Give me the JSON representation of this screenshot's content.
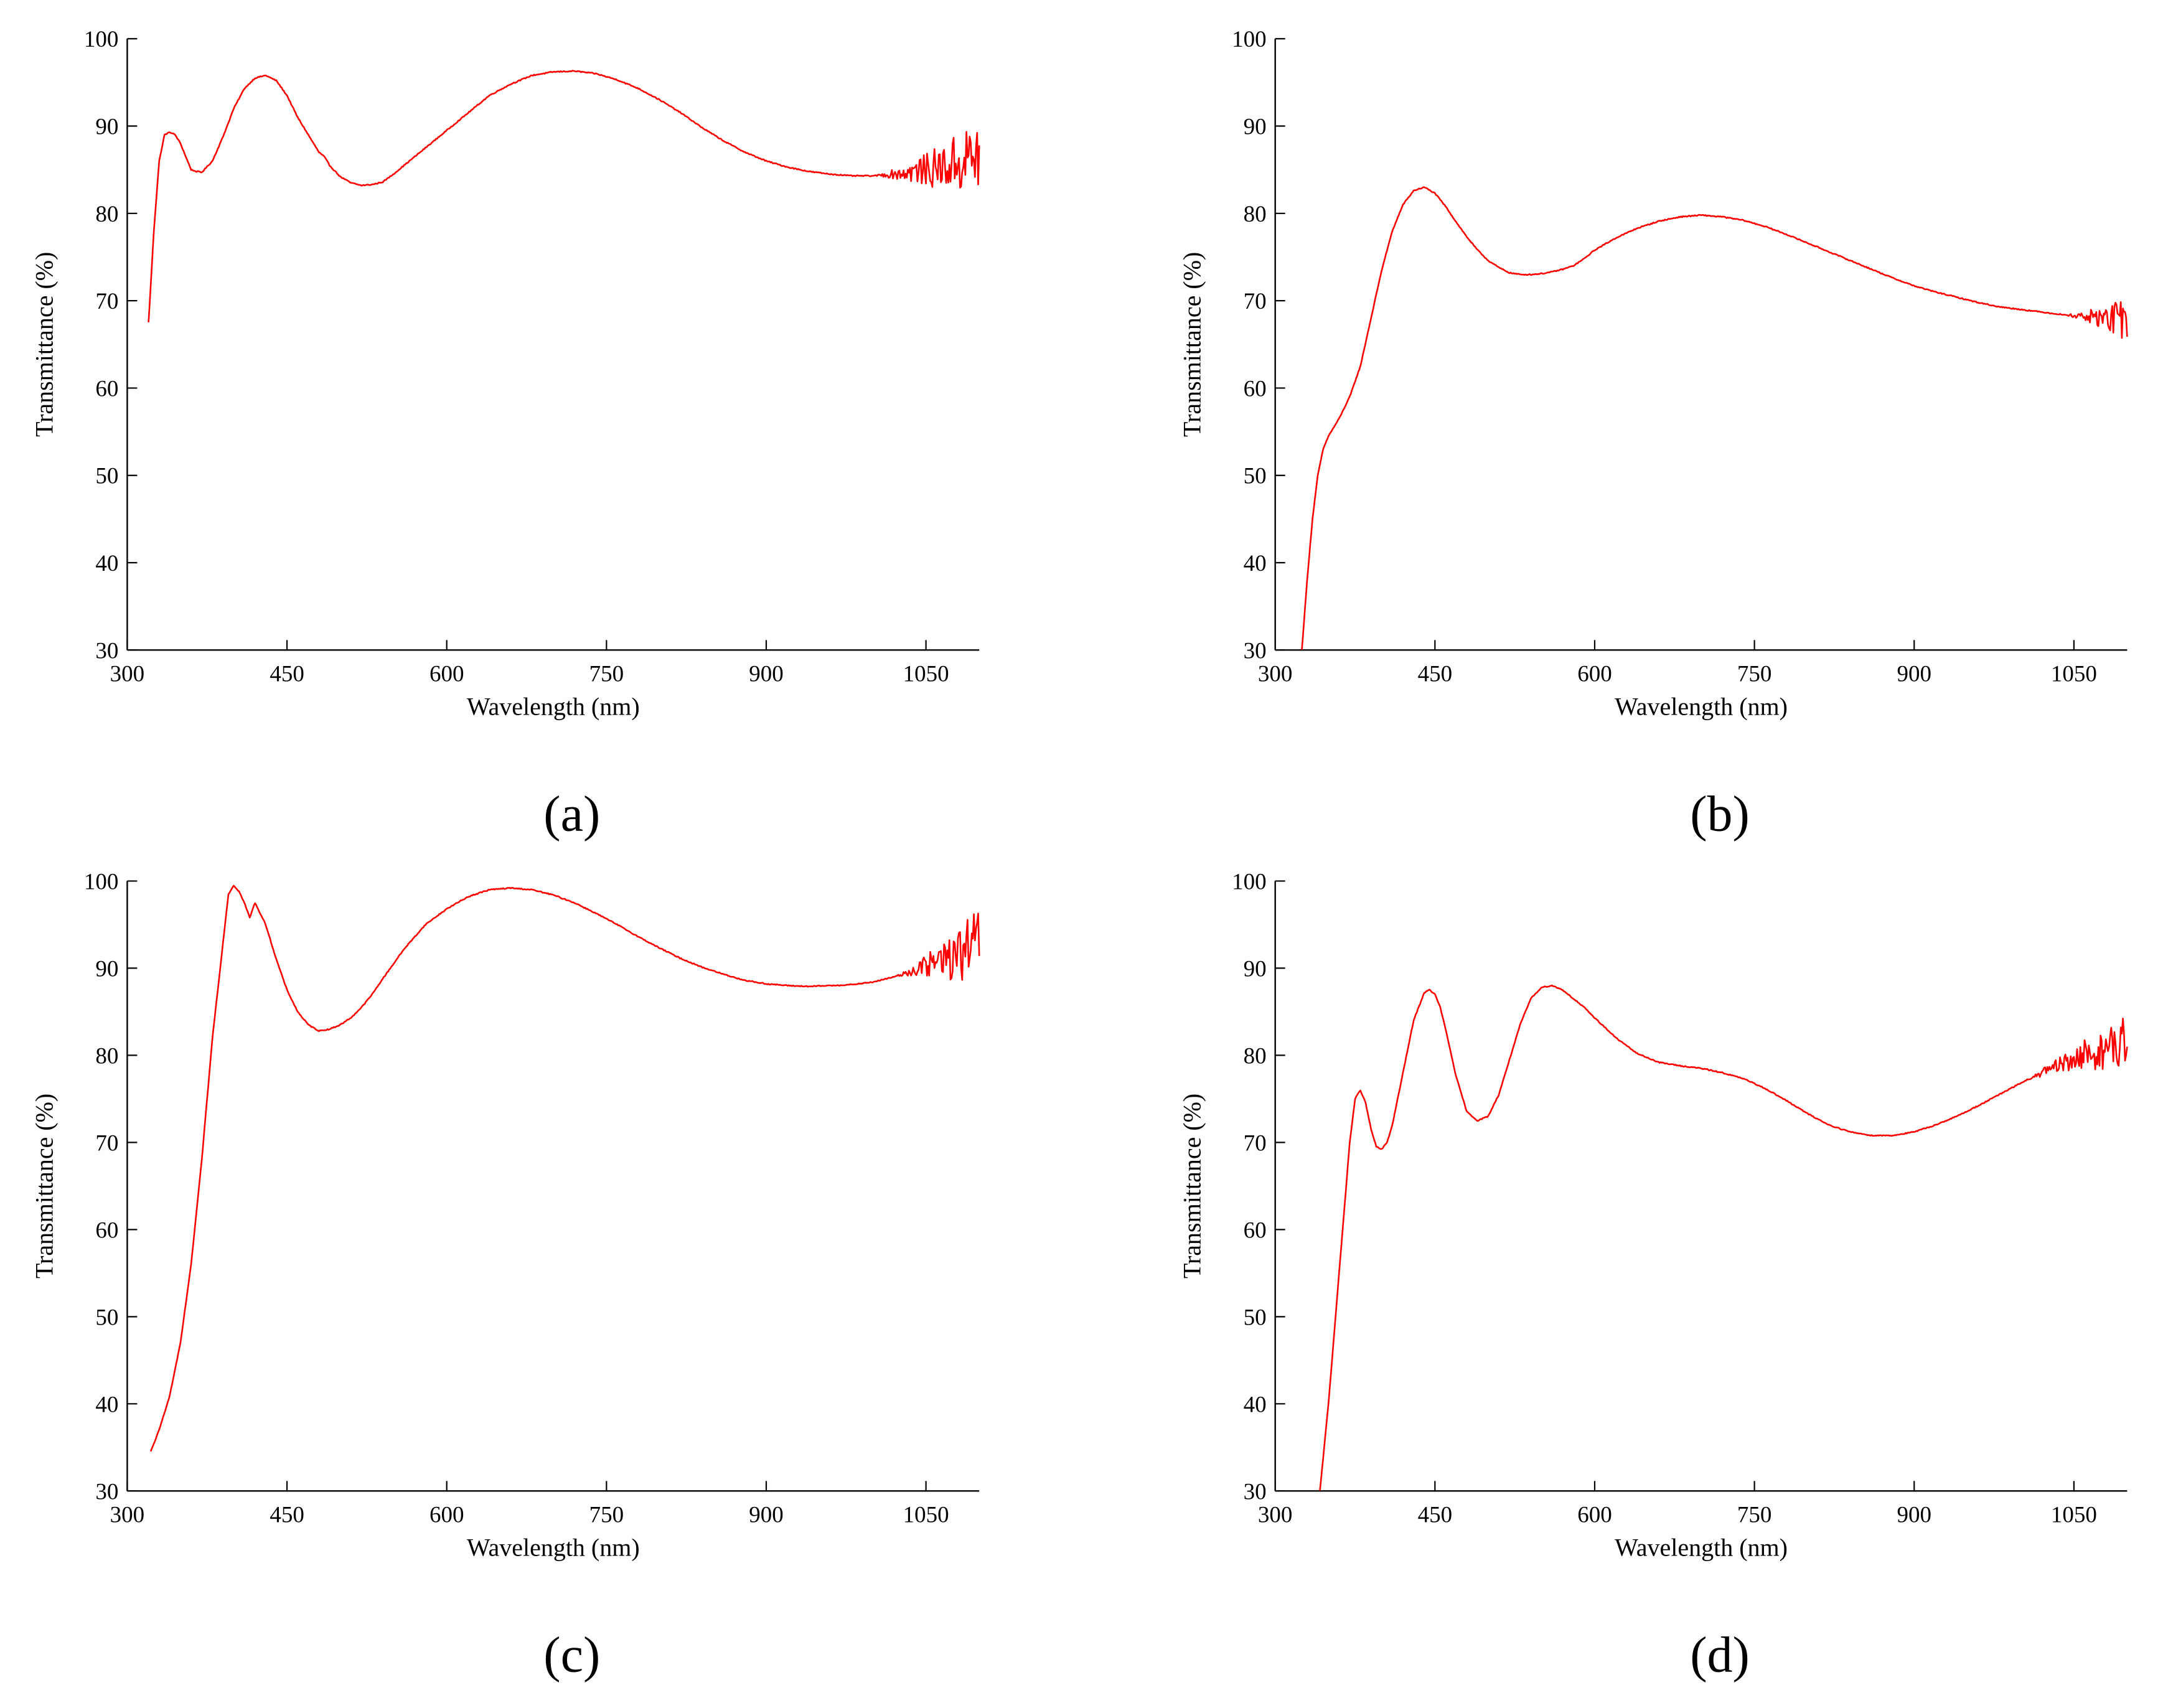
{
  "figure": {
    "line_color": "#ff0000",
    "axis_color": "#000000",
    "background": "#ffffff"
  },
  "chart_data": [
    {
      "type": "line",
      "panel_label": "(a)",
      "xlabel": "Wavelength (nm)",
      "ylabel": "Transmittance (%)",
      "xlim": [
        300,
        1100
      ],
      "ylim": [
        30,
        100
      ],
      "x_ticks": [
        300,
        450,
        600,
        750,
        900,
        1050
      ],
      "y_ticks": [
        30,
        40,
        50,
        60,
        70,
        80,
        90,
        100
      ],
      "noise_start": 1000,
      "noise_amplitude": 4.5,
      "grid": false,
      "series": [
        {
          "x": [
            320,
            325,
            330,
            335,
            340,
            345,
            350,
            355,
            360,
            365,
            370,
            380,
            390,
            400,
            410,
            420,
            430,
            440,
            450,
            460,
            470,
            480,
            485,
            490,
            500,
            510,
            520,
            530,
            540,
            550,
            560,
            580,
            600,
            620,
            640,
            660,
            680,
            700,
            720,
            740,
            760,
            780,
            800,
            820,
            840,
            860,
            880,
            900,
            920,
            940,
            960,
            980,
            1000,
            1020,
            1040,
            1060,
            1080,
            1100
          ],
          "y": [
            67.5,
            78,
            86,
            89,
            89.3,
            89,
            88,
            86.5,
            85,
            84.8,
            84.7,
            86,
            88.8,
            92,
            94.3,
            95.5,
            95.8,
            95.2,
            93.5,
            91,
            89,
            87,
            86.5,
            85.5,
            84.2,
            83.5,
            83.2,
            83.3,
            83.6,
            84.5,
            85.5,
            87.5,
            89.5,
            91.5,
            93.5,
            94.8,
            95.8,
            96.2,
            96.3,
            96,
            95.3,
            94.3,
            93,
            91.5,
            89.8,
            88.3,
            87,
            86,
            85.3,
            84.8,
            84.5,
            84.3,
            84.3,
            84.5,
            84.8,
            85.2,
            85.8,
            86.5
          ]
        }
      ]
    },
    {
      "type": "line",
      "panel_label": "(b)",
      "xlabel": "Wavelength (nm)",
      "ylabel": "Transmittance (%)",
      "xlim": [
        300,
        1100
      ],
      "ylim": [
        30,
        100
      ],
      "x_ticks": [
        300,
        450,
        600,
        750,
        900,
        1050
      ],
      "y_ticks": [
        30,
        40,
        50,
        60,
        70,
        80,
        90,
        100
      ],
      "noise_start": 1040,
      "noise_amplitude": 2.5,
      "grid": false,
      "series": [
        {
          "x": [
            325,
            330,
            335,
            340,
            345,
            350,
            355,
            360,
            370,
            380,
            390,
            400,
            410,
            420,
            430,
            440,
            450,
            460,
            470,
            480,
            490,
            500,
            510,
            520,
            530,
            540,
            550,
            560,
            570,
            580,
            590,
            600,
            620,
            640,
            660,
            680,
            700,
            720,
            740,
            760,
            780,
            800,
            820,
            840,
            860,
            880,
            900,
            920,
            940,
            960,
            980,
            1000,
            1020,
            1040,
            1060,
            1080,
            1100
          ],
          "y": [
            30,
            38,
            45,
            50,
            53,
            54.5,
            55.5,
            56.5,
            59,
            62.5,
            68,
            73.5,
            78,
            81,
            82.6,
            83,
            82.3,
            80.8,
            79,
            77.3,
            75.8,
            74.6,
            73.8,
            73.2,
            73,
            73,
            73.1,
            73.3,
            73.6,
            74,
            74.8,
            75.8,
            77.2,
            78.3,
            79.1,
            79.6,
            79.8,
            79.6,
            79.2,
            78.5,
            77.6,
            76.6,
            75.6,
            74.6,
            73.6,
            72.6,
            71.7,
            71,
            70.4,
            69.8,
            69.3,
            69,
            68.7,
            68.4,
            68.2,
            68,
            67.8
          ]
        }
      ]
    },
    {
      "type": "line",
      "panel_label": "(c)",
      "xlabel": "Wavelength (nm)",
      "ylabel": "Transmittance (%)",
      "xlim": [
        300,
        1100
      ],
      "ylim": [
        30,
        100
      ],
      "x_ticks": [
        300,
        450,
        600,
        750,
        900,
        1050
      ],
      "y_ticks": [
        30,
        40,
        50,
        60,
        70,
        80,
        90,
        100
      ],
      "noise_start": 1020,
      "noise_amplitude": 4.5,
      "grid": false,
      "series": [
        {
          "x": [
            322,
            330,
            340,
            350,
            360,
            370,
            380,
            390,
            395,
            400,
            405,
            410,
            415,
            420,
            430,
            440,
            450,
            460,
            470,
            480,
            490,
            500,
            510,
            520,
            530,
            540,
            550,
            560,
            570,
            580,
            600,
            620,
            640,
            660,
            680,
            700,
            720,
            740,
            760,
            780,
            800,
            820,
            840,
            860,
            880,
            900,
            920,
            940,
            960,
            980,
            1000,
            1020,
            1040,
            1060,
            1080,
            1100
          ],
          "y": [
            34.5,
            37,
            41,
            47,
            56,
            68,
            82,
            93,
            98.5,
            99.5,
            98.8,
            97.5,
            95.8,
            97.5,
            95,
            91,
            87.5,
            85,
            83.5,
            82.8,
            83,
            83.5,
            84.3,
            85.5,
            87,
            88.8,
            90.5,
            92.2,
            93.6,
            95,
            96.8,
            98.2,
            99,
            99.2,
            99,
            98.4,
            97.5,
            96.3,
            95,
            93.6,
            92.3,
            91.1,
            90.1,
            89.3,
            88.6,
            88.2,
            88,
            87.9,
            88,
            88.1,
            88.4,
            89,
            89.8,
            90.7,
            91.5,
            92.5
          ]
        }
      ]
    },
    {
      "type": "line",
      "panel_label": "(d)",
      "xlabel": "Wavelength (nm)",
      "ylabel": "Transmittance (%)",
      "xlim": [
        300,
        1100
      ],
      "ylim": [
        30,
        100
      ],
      "x_ticks": [
        300,
        450,
        600,
        750,
        900,
        1050
      ],
      "y_ticks": [
        30,
        40,
        50,
        60,
        70,
        80,
        90,
        100
      ],
      "noise_start": 1000,
      "noise_amplitude": 3.5,
      "grid": false,
      "series": [
        {
          "x": [
            342,
            350,
            360,
            370,
            375,
            380,
            385,
            390,
            395,
            400,
            405,
            410,
            420,
            430,
            440,
            445,
            450,
            455,
            460,
            470,
            480,
            490,
            500,
            510,
            520,
            530,
            540,
            550,
            560,
            570,
            580,
            590,
            600,
            620,
            640,
            660,
            680,
            700,
            720,
            740,
            760,
            780,
            800,
            820,
            840,
            860,
            880,
            900,
            920,
            940,
            960,
            980,
            1000,
            1020,
            1040,
            1060,
            1080,
            1100
          ],
          "y": [
            30,
            40,
            55,
            70,
            75,
            76,
            74.5,
            71.5,
            69.5,
            69.2,
            70,
            72,
            78,
            84,
            87.2,
            87.5,
            87,
            85.5,
            83,
            77.5,
            73.5,
            72.5,
            73,
            75.5,
            79.5,
            83.5,
            86.5,
            87.8,
            88,
            87.5,
            86.5,
            85.5,
            84.3,
            82,
            80.2,
            79.2,
            78.8,
            78.5,
            78,
            77.3,
            76.2,
            74.8,
            73.3,
            72,
            71.2,
            70.8,
            70.8,
            71.2,
            72,
            73,
            74.2,
            75.5,
            76.8,
            78,
            79,
            80,
            80.7,
            81.2
          ]
        }
      ]
    }
  ]
}
